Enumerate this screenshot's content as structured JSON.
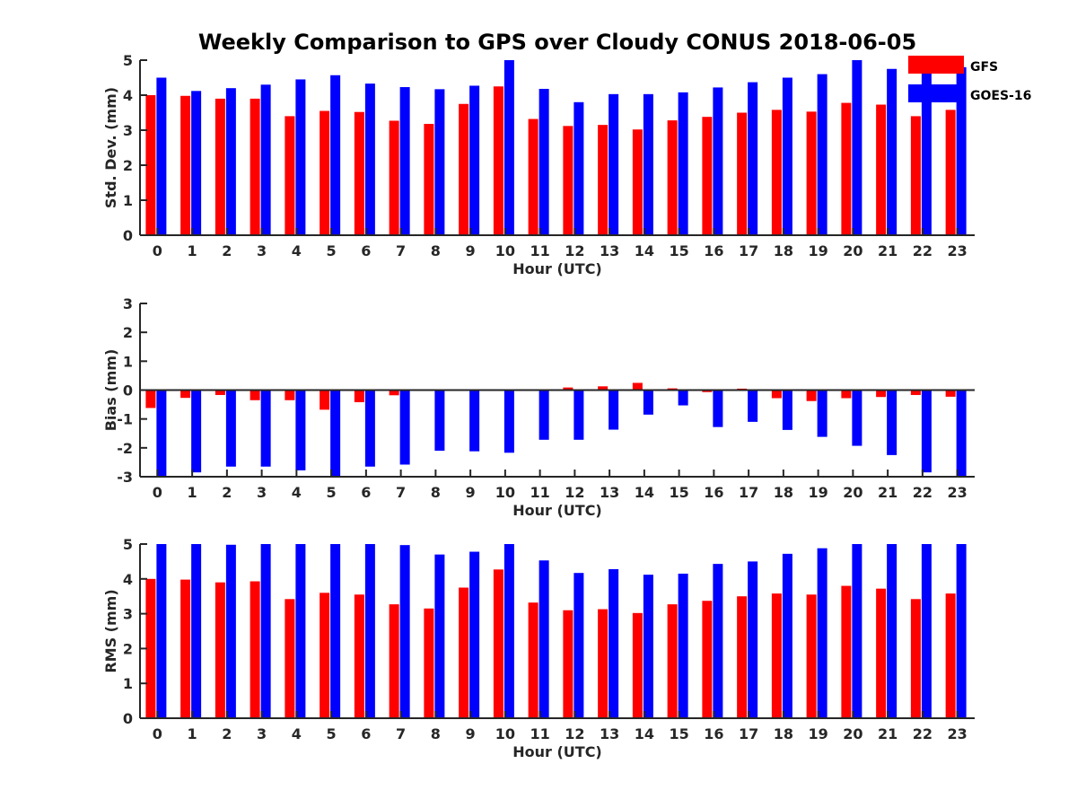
{
  "chart_data": {
    "type": "bar",
    "title": "Weekly Comparison to GPS over Cloudy CONUS 2018-06-05",
    "legend": {
      "placement": "top-right",
      "entries": [
        {
          "name": "GFS",
          "color": "#ff0000"
        },
        {
          "name": "GOES-16",
          "color": "#0000ff"
        }
      ]
    },
    "categories": [
      "0",
      "1",
      "2",
      "3",
      "4",
      "5",
      "6",
      "7",
      "8",
      "9",
      "10",
      "11",
      "12",
      "13",
      "14",
      "15",
      "16",
      "17",
      "18",
      "19",
      "20",
      "21",
      "22",
      "23"
    ],
    "panels": [
      {
        "xlabel": "Hour (UTC)",
        "ylabel": "Std. Dev. (mm)",
        "ylim": [
          0,
          5
        ],
        "yticks": [
          "0",
          "1",
          "2",
          "3",
          "4",
          "5"
        ],
        "series": [
          {
            "name": "GFS",
            "values": [
              4.0,
              3.98,
              3.9,
              3.9,
              3.4,
              3.55,
              3.52,
              3.27,
              3.18,
              3.75,
              4.25,
              3.32,
              3.12,
              3.15,
              3.02,
              3.28,
              3.38,
              3.5,
              3.58,
              3.53,
              3.78,
              3.73,
              3.4,
              3.58
            ]
          },
          {
            "name": "GOES-16",
            "values": [
              4.5,
              4.12,
              4.2,
              4.3,
              4.45,
              4.57,
              4.33,
              4.23,
              4.17,
              4.27,
              5.0,
              4.18,
              3.8,
              4.03,
              4.03,
              4.08,
              4.22,
              4.37,
              4.5,
              4.6,
              5.0,
              4.75,
              4.67,
              4.8
            ]
          }
        ]
      },
      {
        "xlabel": "Hour (UTC)",
        "ylabel": "Bias (mm)",
        "ylim": [
          -3,
          3
        ],
        "yticks": [
          "-3",
          "-2",
          "-1",
          "0",
          "1",
          "2",
          "3"
        ],
        "series": [
          {
            "name": "GFS",
            "values": [
              -0.62,
              -0.27,
              -0.17,
              -0.35,
              -0.35,
              -0.68,
              -0.42,
              -0.18,
              -0.02,
              0.03,
              -0.01,
              0.02,
              0.09,
              0.13,
              0.25,
              0.06,
              -0.07,
              0.05,
              -0.28,
              -0.38,
              -0.28,
              -0.24,
              -0.17,
              -0.23
            ]
          },
          {
            "name": "GOES-16",
            "values": [
              -3.0,
              -2.85,
              -2.65,
              -2.65,
              -2.78,
              -3.0,
              -2.65,
              -2.58,
              -2.1,
              -2.12,
              -2.17,
              -1.72,
              -1.72,
              -1.37,
              -0.85,
              -0.53,
              -1.28,
              -1.1,
              -1.38,
              -1.62,
              -1.93,
              -2.25,
              -2.85,
              -3.0
            ]
          }
        ]
      },
      {
        "xlabel": "Hour (UTC)",
        "ylabel": "RMS (mm)",
        "ylim": [
          0,
          5
        ],
        "yticks": [
          "0",
          "1",
          "2",
          "3",
          "4",
          "5"
        ],
        "series": [
          {
            "name": "GFS",
            "values": [
              4.0,
              3.98,
              3.9,
              3.93,
              3.42,
              3.6,
              3.55,
              3.27,
              3.15,
              3.75,
              4.27,
              3.32,
              3.1,
              3.13,
              3.02,
              3.27,
              3.37,
              3.5,
              3.58,
              3.55,
              3.8,
              3.72,
              3.42,
              3.58
            ]
          },
          {
            "name": "GOES-16",
            "values": [
              5.0,
              5.0,
              4.98,
              5.0,
              5.0,
              5.0,
              5.0,
              4.97,
              4.7,
              4.78,
              5.0,
              4.53,
              4.17,
              4.28,
              4.12,
              4.15,
              4.43,
              4.5,
              4.72,
              4.88,
              5.0,
              5.0,
              5.0,
              5.0
            ]
          }
        ]
      }
    ]
  }
}
